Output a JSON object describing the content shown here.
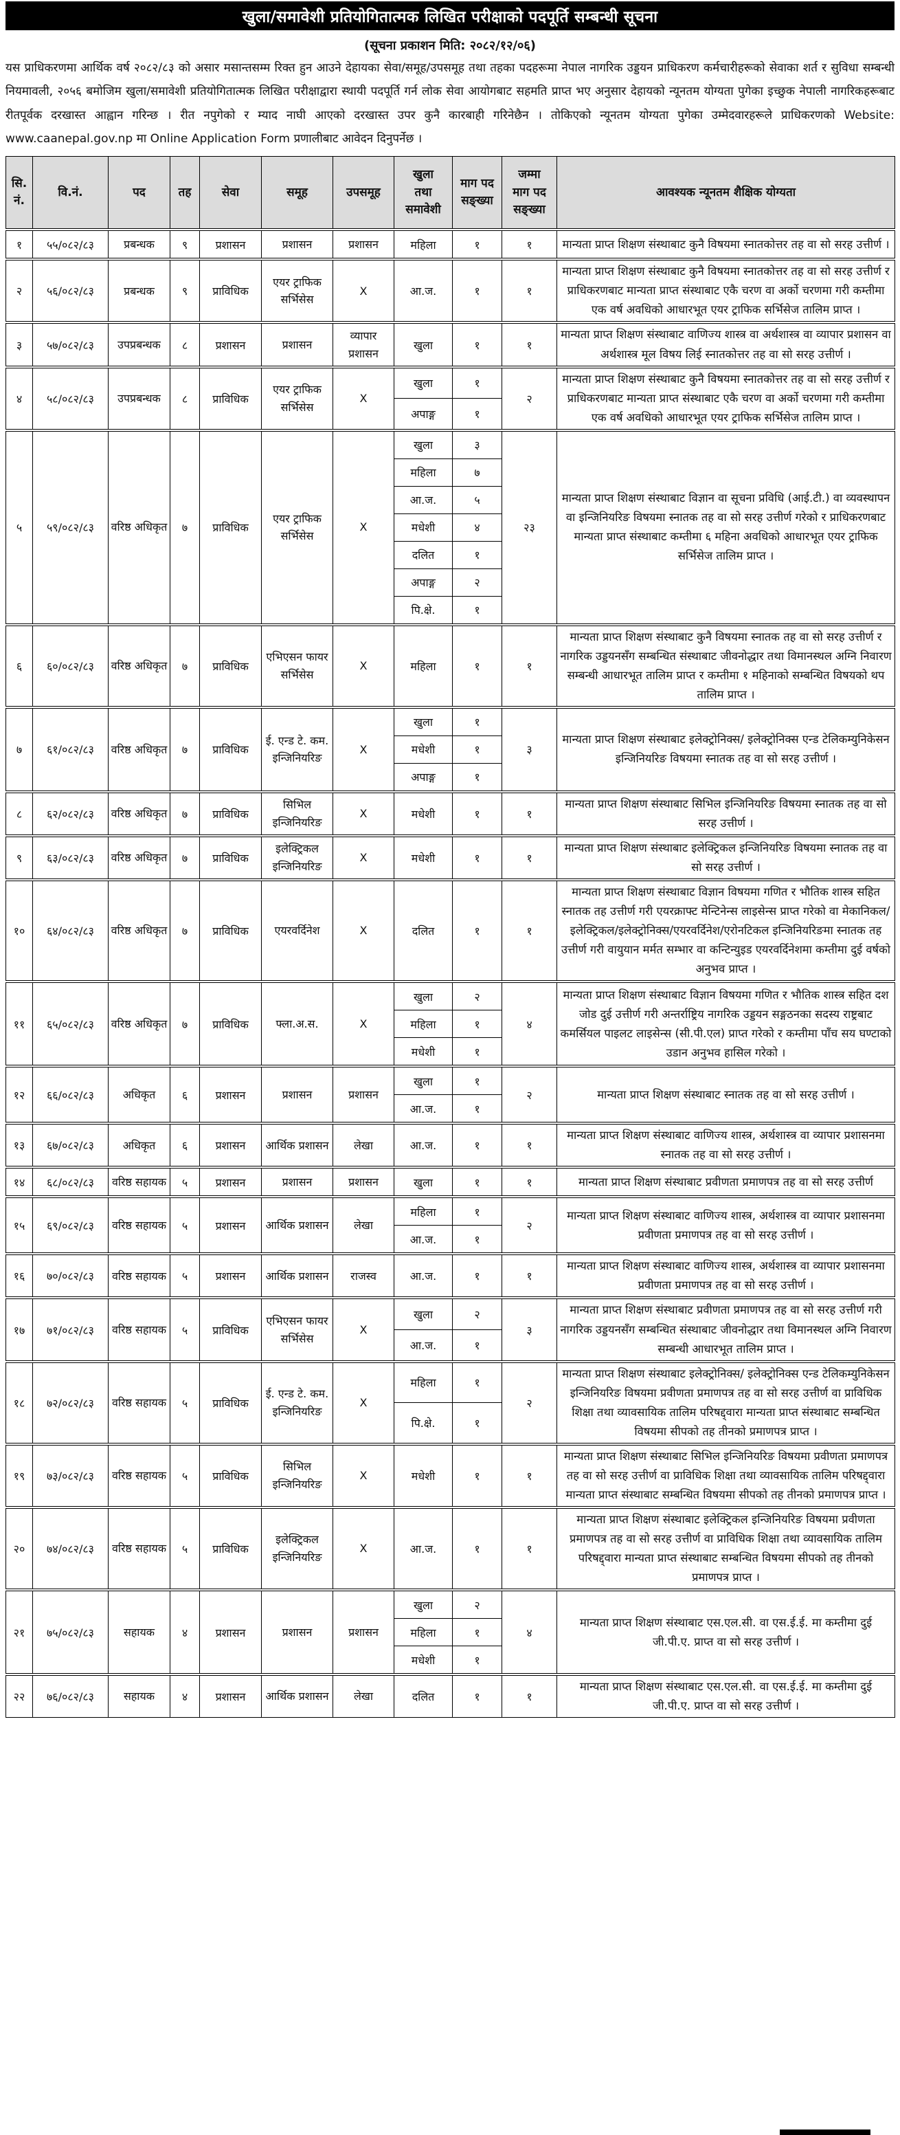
{
  "header": {
    "title": "खुला/समावेशी प्रतियोगितात्मक लिखित परीक्षाको पदपूर्ति सम्बन्धी सूचना",
    "publish_date_line": "(सूचना प्रकाशन मिति: २०८२/१२/०६)",
    "intro": "यस प्राधिकरणमा आर्थिक वर्ष २०८२/८३ को असार मसान्तसम्म रिक्त हुन आउने देहायका सेवा/समूह/उपसमूह तथा तहका पदहरूमा नेपाल नागरिक उड्डयन प्राधिकरण कर्मचारीहरूको सेवाका शर्त र सुविधा सम्बन्धी नियमावली, २०५६ बमोजिम खुला/समावेशी प्रतियोगितात्मक लिखित परीक्षाद्वारा स्थायी पदपूर्ति गर्न लोक सेवा आयोगबाट सहमति प्राप्त भए अनुसार देहायको न्यूनतम योग्यता पुगेका इच्छुक नेपाली नागरिकहरूबाट रीतपूर्वक दरखास्त आह्वान गरिन्छ । रीत नपुगेको र म्याद नाघी आएको दरखास्त उपर कुनै कारबाही गरिनेछैन । तोकिएको न्यूनतम योग्यता पुगेका उम्मेदवारहरूले प्राधिकरणको Website: www.caanepal.gov.np मा Online Application Form प्रणालीबाट आवेदन दिनुपर्नेछ ।"
  },
  "table": {
    "columns": [
      "सि.\nनं.",
      "वि.नं.",
      "पद",
      "तह",
      "सेवा",
      "समूह",
      "उपसमूह",
      "खुला\nतथा\nसमावेशी",
      "माग पद\nसङ्ख्या",
      "जम्मा\nमाग पद\nसङ्ख्या",
      "आवश्यक न्यूनतम शैक्षिक योग्यता"
    ],
    "rows": [
      {
        "sn": "१",
        "adv": "५५/०८२/८३",
        "post": "प्रबन्धक",
        "level": "९",
        "service": "प्रशासन",
        "group": "प्रशासन",
        "subgroup": "प्रशासन",
        "cats": [
          {
            "name": "महिला",
            "count": "१"
          }
        ],
        "total": "१",
        "qualification": "मान्यता प्राप्त शिक्षण संस्थाबाट कुनै विषयमा स्नातकोत्तर तह वा सो सरह उत्तीर्ण ।"
      },
      {
        "sn": "२",
        "adv": "५६/०८२/८३",
        "post": "प्रबन्धक",
        "level": "९",
        "service": "प्राविधिक",
        "group": "एयर ट्राफिक सर्भिसेस",
        "subgroup": "X",
        "cats": [
          {
            "name": "आ.ज.",
            "count": "१"
          }
        ],
        "total": "१",
        "qualification": "मान्यता प्राप्त शिक्षण संस्थाबाट कुनै विषयमा स्नातकोत्तर तह वा सो सरह उत्तीर्ण र प्राधिकरणबाट मान्यता प्राप्त संस्थाबाट एकै चरण वा अर्को चरणमा गरी कम्तीमा एक वर्ष अवधिको आधारभूत एयर ट्राफिक सर्भिसेज तालिम प्राप्त ।"
      },
      {
        "sn": "३",
        "adv": "५७/०८२/८३",
        "post": "उपप्रबन्धक",
        "level": "८",
        "service": "प्रशासन",
        "group": "प्रशासन",
        "subgroup": "व्यापार प्रशासन",
        "cats": [
          {
            "name": "खुला",
            "count": "१"
          }
        ],
        "total": "१",
        "qualification": "मान्यता प्राप्त शिक्षण संस्थाबाट वाणिज्य शास्त्र वा अर्थशास्त्र वा व्यापार प्रशासन वा अर्थशास्त्र मूल विषय लिई स्नातकोत्तर तह वा सो सरह उत्तीर्ण ।"
      },
      {
        "sn": "४",
        "adv": "५८/०८२/८३",
        "post": "उपप्रबन्धक",
        "level": "८",
        "service": "प्राविधिक",
        "group": "एयर ट्राफिक सर्भिसेस",
        "subgroup": "X",
        "cats": [
          {
            "name": "खुला",
            "count": "१"
          },
          {
            "name": "अपाङ्ग",
            "count": "१"
          }
        ],
        "total": "२",
        "qualification": "मान्यता प्राप्त शिक्षण संस्थाबाट कुनै विषयमा स्नातकोत्तर तह वा सो सरह उत्तीर्ण र प्राधिकरणबाट मान्यता प्राप्त संस्थाबाट एकै चरण वा अर्को चरणमा गरी कम्तीमा एक वर्ष अवधिको आधारभूत एयर ट्राफिक सर्भिसेज तालिम प्राप्त ।"
      },
      {
        "sn": "५",
        "adv": "५९/०८२/८३",
        "post": "वरिष्ठ अधिकृत",
        "level": "७",
        "service": "प्राविधिक",
        "group": "एयर ट्राफिक सर्भिसेस",
        "subgroup": "X",
        "cats": [
          {
            "name": "खुला",
            "count": "३"
          },
          {
            "name": "महिला",
            "count": "७"
          },
          {
            "name": "आ.ज.",
            "count": "५"
          },
          {
            "name": "मधेशी",
            "count": "४"
          },
          {
            "name": "दलित",
            "count": "१"
          },
          {
            "name": "अपाङ्ग",
            "count": "२"
          },
          {
            "name": "पि.क्षे.",
            "count": "१"
          }
        ],
        "total": "२३",
        "qualification": "मान्यता प्राप्त शिक्षण संस्थाबाट विज्ञान वा सूचना प्रविधि (आई.टी.) वा व्यवस्थापन वा इन्जिनियरिङ विषयमा स्नातक तह वा सो सरह उत्तीर्ण गरेको र प्राधिकरणबाट मान्यता प्राप्त संस्थाबाट कम्तीमा ६ महिना अवधिको आधारभूत एयर ट्राफिक सर्भिसेज तालिम प्राप्त ।"
      },
      {
        "sn": "६",
        "adv": "६०/०८२/८३",
        "post": "वरिष्ठ अधिकृत",
        "level": "७",
        "service": "प्राविधिक",
        "group": "एभिएसन फायर सर्भिसेस",
        "subgroup": "X",
        "cats": [
          {
            "name": "महिला",
            "count": "१"
          }
        ],
        "total": "१",
        "qualification": "मान्यता प्राप्त शिक्षण संस्थाबाट कुनै विषयमा स्नातक तह वा सो सरह उत्तीर्ण र नागरिक उड्डयनसँग सम्बन्धित संस्थाबाट जीवनोद्धार तथा विमानस्थल अग्नि निवारण सम्बन्धी आधारभूत तालिम प्राप्त र कम्तीमा १ महिनाको सम्बन्धित विषयको थप तालिम प्राप्त ।"
      },
      {
        "sn": "७",
        "adv": "६१/०८२/८३",
        "post": "वरिष्ठ अधिकृत",
        "level": "७",
        "service": "प्राविधिक",
        "group": "ई. एन्ड टे. कम. इन्जिनियरिङ",
        "subgroup": "X",
        "cats": [
          {
            "name": "खुला",
            "count": "१"
          },
          {
            "name": "मधेशी",
            "count": "१"
          },
          {
            "name": "अपाङ्ग",
            "count": "१"
          }
        ],
        "total": "३",
        "qualification": "मान्यता प्राप्त शिक्षण संस्थाबाट इलेक्ट्रोनिक्स/ इलेक्ट्रोनिक्स एन्ड टेलिकम्युनिकेसन इन्जिनियरिङ विषयमा स्नातक तह वा सो सरह उत्तीर्ण ।"
      },
      {
        "sn": "८",
        "adv": "६२/०८२/८३",
        "post": "वरिष्ठ अधिकृत",
        "level": "७",
        "service": "प्राविधिक",
        "group": "सिभिल इन्जिनियरिङ",
        "subgroup": "X",
        "cats": [
          {
            "name": "मधेशी",
            "count": "१"
          }
        ],
        "total": "१",
        "qualification": "मान्यता प्राप्त शिक्षण संस्थाबाट सिभिल इन्जिनियरिङ विषयमा स्नातक तह वा सो सरह उत्तीर्ण ।"
      },
      {
        "sn": "९",
        "adv": "६३/०८२/८३",
        "post": "वरिष्ठ अधिकृत",
        "level": "७",
        "service": "प्राविधिक",
        "group": "इलेक्ट्रिकल इन्जिनियरिङ",
        "subgroup": "X",
        "cats": [
          {
            "name": "मधेशी",
            "count": "१"
          }
        ],
        "total": "१",
        "qualification": "मान्यता प्राप्त शिक्षण संस्थाबाट इलेक्ट्रिकल इन्जिनियरिङ विषयमा स्नातक तह वा सो सरह उत्तीर्ण ।"
      },
      {
        "sn": "१०",
        "adv": "६४/०८२/८३",
        "post": "वरिष्ठ अधिकृत",
        "level": "७",
        "service": "प्राविधिक",
        "group": "एयरवर्दिनेश",
        "subgroup": "X",
        "cats": [
          {
            "name": "दलित",
            "count": "१"
          }
        ],
        "total": "१",
        "qualification": "मान्यता प्राप्त शिक्षण संस्थाबाट विज्ञान विषयमा गणित र भौतिक शास्त्र सहित स्नातक तह उत्तीर्ण गरी एयरक्राफ्ट मेन्टिनेन्स लाइसेन्स प्राप्त गरेको वा मेकानिकल/इलेक्ट्रिकल/इलेक्ट्रोनिक्स/एयरवर्दिनेश/एरोनटिकल इन्जिनियरिङमा स्नातक तह उत्तीर्ण गरी वायुयान मर्मत सम्भार वा कन्टिन्युइड एयरवर्दिनेशमा कम्तीमा दुई वर्षको अनुभव प्राप्त ।"
      },
      {
        "sn": "११",
        "adv": "६५/०८२/८३",
        "post": "वरिष्ठ अधिकृत",
        "level": "७",
        "service": "प्राविधिक",
        "group": "फ्ला.अ.स.",
        "subgroup": "X",
        "cats": [
          {
            "name": "खुला",
            "count": "२"
          },
          {
            "name": "महिला",
            "count": "१"
          },
          {
            "name": "मधेशी",
            "count": "१"
          }
        ],
        "total": "४",
        "qualification": "मान्यता प्राप्त शिक्षण संस्थाबाट विज्ञान विषयमा गणित र भौतिक शास्त्र सहित दश जोड दुई उत्तीर्ण गरी अन्तर्राष्ट्रिय नागरिक उड्डयन सङ्गठनका सदस्य राष्ट्रबाट कमर्सियल पाइलट लाइसेन्स (सी.पी.एल) प्राप्त गरेको र कम्तीमा पाँच सय घण्टाको उडान अनुभव हासिल गरेको ।"
      },
      {
        "sn": "१२",
        "adv": "६६/०८२/८३",
        "post": "अधिकृत",
        "level": "६",
        "service": "प्रशासन",
        "group": "प्रशासन",
        "subgroup": "प्रशासन",
        "cats": [
          {
            "name": "खुला",
            "count": "१"
          },
          {
            "name": "आ.ज.",
            "count": "१"
          }
        ],
        "total": "२",
        "qualification": "मान्यता प्राप्त शिक्षण संस्थाबाट स्नातक तह वा सो सरह उत्तीर्ण ।"
      },
      {
        "sn": "१३",
        "adv": "६७/०८२/८३",
        "post": "अधिकृत",
        "level": "६",
        "service": "प्रशासन",
        "group": "आर्थिक प्रशासन",
        "subgroup": "लेखा",
        "cats": [
          {
            "name": "आ.ज.",
            "count": "१"
          }
        ],
        "total": "१",
        "qualification": "मान्यता प्राप्त शिक्षण संस्थाबाट वाणिज्य शास्त्र, अर्थशास्त्र वा व्यापार प्रशासनमा स्नातक तह वा सो सरह उत्तीर्ण ।"
      },
      {
        "sn": "१४",
        "adv": "६८/०८२/८३",
        "post": "वरिष्ठ सहायक",
        "level": "५",
        "service": "प्रशासन",
        "group": "प्रशासन",
        "subgroup": "प्रशासन",
        "cats": [
          {
            "name": "खुला",
            "count": "१"
          }
        ],
        "total": "१",
        "qualification": "मान्यता प्राप्त शिक्षण संस्थाबाट प्रवीणता प्रमाणपत्र तह वा सो सरह उत्तीर्ण"
      },
      {
        "sn": "१५",
        "adv": "६९/०८२/८३",
        "post": "वरिष्ठ सहायक",
        "level": "५",
        "service": "प्रशासन",
        "group": "आर्थिक प्रशासन",
        "subgroup": "लेखा",
        "cats": [
          {
            "name": "महिला",
            "count": "१"
          },
          {
            "name": "आ.ज.",
            "count": "१"
          }
        ],
        "total": "२",
        "qualification": "मान्यता प्राप्त शिक्षण संस्थाबाट वाणिज्य शास्त्र, अर्थशास्त्र वा व्यापार प्रशासनमा प्रवीणता प्रमाणपत्र तह वा सो सरह उत्तीर्ण ।"
      },
      {
        "sn": "१६",
        "adv": "७०/०८२/८३",
        "post": "वरिष्ठ सहायक",
        "level": "५",
        "service": "प्रशासन",
        "group": "आर्थिक प्रशासन",
        "subgroup": "राजस्व",
        "cats": [
          {
            "name": "आ.ज.",
            "count": "१"
          }
        ],
        "total": "१",
        "qualification": "मान्यता प्राप्त शिक्षण संस्थाबाट वाणिज्य शास्त्र, अर्थशास्त्र वा व्यापार प्रशासनमा प्रवीणता प्रमाणपत्र तह वा सो सरह उत्तीर्ण ।"
      },
      {
        "sn": "१७",
        "adv": "७१/०८२/८३",
        "post": "वरिष्ठ सहायक",
        "level": "५",
        "service": "प्राविधिक",
        "group": "एभिएसन फायर सर्भिसेस",
        "subgroup": "X",
        "cats": [
          {
            "name": "खुला",
            "count": "२"
          },
          {
            "name": "आ.ज.",
            "count": "१"
          }
        ],
        "total": "३",
        "qualification": "मान्यता प्राप्त शिक्षण संस्थाबाट प्रवीणता प्रमाणपत्र तह वा सो सरह उत्तीर्ण गरी नागरिक उड्डयनसँग सम्बन्धित संस्थाबाट जीवनोद्धार तथा विमानस्थल अग्नि निवारण सम्बन्धी आधारभूत तालिम प्राप्त ।"
      },
      {
        "sn": "१८",
        "adv": "७२/०८२/८३",
        "post": "वरिष्ठ सहायक",
        "level": "५",
        "service": "प्राविधिक",
        "group": "ई. एन्ड टे. कम. इन्जिनियरिङ",
        "subgroup": "X",
        "cats": [
          {
            "name": "महिला",
            "count": "१"
          },
          {
            "name": "पि.क्षे.",
            "count": "१"
          }
        ],
        "total": "२",
        "qualification": "मान्यता प्राप्त शिक्षण संस्थाबाट इलेक्ट्रोनिक्स/ इलेक्ट्रोनिक्स एन्ड टेलिकम्युनिकेसन इन्जिनियरिङ विषयमा प्रवीणता प्रमाणपत्र तह वा सो सरह उत्तीर्ण वा प्राविधिक शिक्षा तथा व्यावसायिक तालिम परिषद्द्वारा मान्यता प्राप्त संस्थाबाट सम्बन्धित विषयमा सीपको तह तीनको प्रमाणपत्र प्राप्त ।"
      },
      {
        "sn": "१९",
        "adv": "७३/०८२/८३",
        "post": "वरिष्ठ सहायक",
        "level": "५",
        "service": "प्राविधिक",
        "group": "सिभिल इन्जिनियरिङ",
        "subgroup": "X",
        "cats": [
          {
            "name": "मधेशी",
            "count": "१"
          }
        ],
        "total": "१",
        "qualification": "मान्यता प्राप्त शिक्षण संस्थाबाट सिभिल इन्जिनियरिङ विषयमा प्रवीणता प्रमाणपत्र तह वा सो सरह उत्तीर्ण वा प्राविधिक शिक्षा तथा व्यावसायिक तालिम परिषद्द्वारा मान्यता प्राप्त संस्थाबाट सम्बन्धित विषयमा सीपको तह तीनको प्रमाणपत्र प्राप्त ।"
      },
      {
        "sn": "२०",
        "adv": "७४/०८२/८३",
        "post": "वरिष्ठ सहायक",
        "level": "५",
        "service": "प्राविधिक",
        "group": "इलेक्ट्रिकल इन्जिनियरिङ",
        "subgroup": "X",
        "cats": [
          {
            "name": "आ.ज.",
            "count": "१"
          }
        ],
        "total": "१",
        "qualification": "मान्यता प्राप्त शिक्षण संस्थाबाट इलेक्ट्रिकल इन्जिनियरिङ विषयमा प्रवीणता प्रमाणपत्र तह वा सो सरह उत्तीर्ण वा प्राविधिक शिक्षा तथा व्यावसायिक तालिम परिषद्द्वारा मान्यता प्राप्त संस्थाबाट सम्बन्धित विषयमा सीपको तह तीनको प्रमाणपत्र प्राप्त ।"
      },
      {
        "sn": "२१",
        "adv": "७५/०८२/८३",
        "post": "सहायक",
        "level": "४",
        "service": "प्रशासन",
        "group": "प्रशासन",
        "subgroup": "प्रशासन",
        "cats": [
          {
            "name": "खुला",
            "count": "२"
          },
          {
            "name": "महिला",
            "count": "१"
          },
          {
            "name": "मधेशी",
            "count": "१"
          }
        ],
        "total": "४",
        "qualification": "मान्यता प्राप्त शिक्षण संस्थाबाट एस.एल.सी. वा एस.ई.ई. मा कम्तीमा दुई जी.पी.ए. प्राप्त वा सो सरह उत्तीर्ण ।"
      },
      {
        "sn": "२२",
        "adv": "७६/०८२/८३",
        "post": "सहायक",
        "level": "४",
        "service": "प्रशासन",
        "group": "आर्थिक प्रशासन",
        "subgroup": "लेखा",
        "cats": [
          {
            "name": "दलित",
            "count": "१"
          }
        ],
        "total": "१",
        "qualification": "मान्यता प्राप्त शिक्षण संस्थाबाट एस.एल.सी. वा एस.ई.ई. मा कम्तीमा दुई जी.पी.ए. प्राप्त वा सो सरह उत्तीर्ण ।"
      }
    ]
  }
}
